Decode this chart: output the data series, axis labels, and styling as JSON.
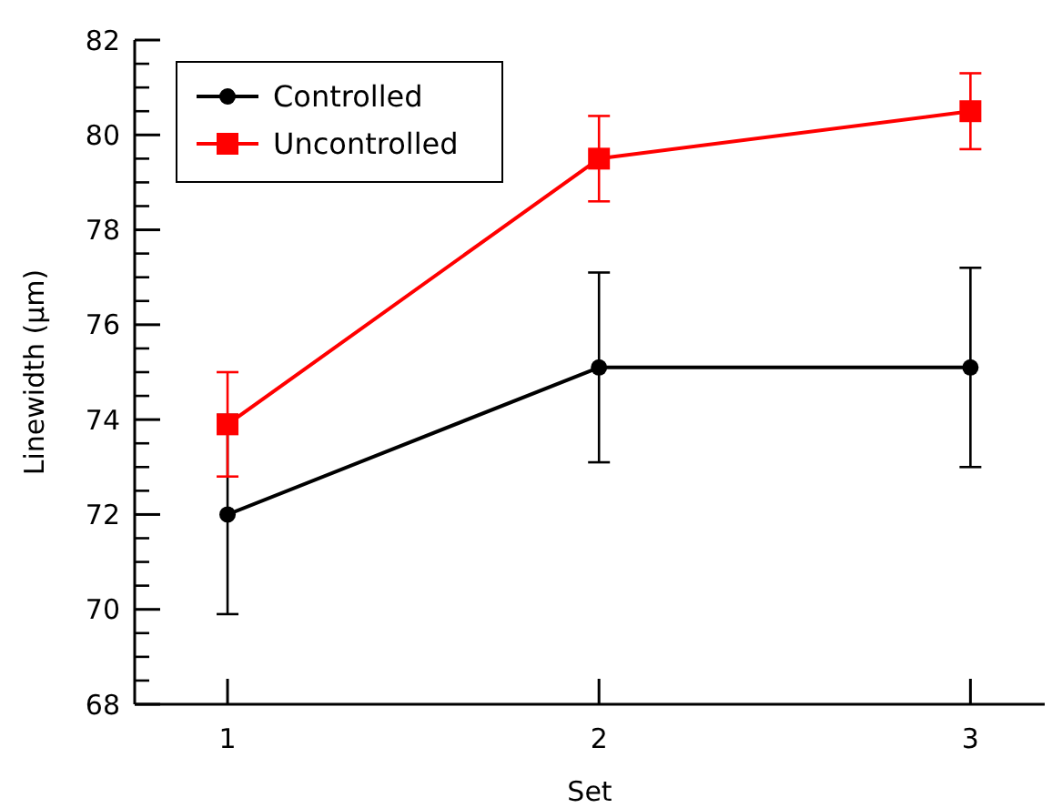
{
  "chart_data": {
    "type": "line",
    "xlabel": "Set",
    "ylabel": "Linewidth (µm)",
    "x": [
      1,
      2,
      3
    ],
    "xlim": [
      0.75,
      3.2
    ],
    "xticks": [
      1,
      2,
      3
    ],
    "ylim": [
      68,
      82
    ],
    "yticks": [
      68,
      70,
      72,
      74,
      76,
      78,
      80,
      82
    ],
    "grid": false,
    "legend": "top left",
    "series": [
      {
        "name": "Controlled",
        "color": "#000000",
        "marker": "circle",
        "values": [
          72.0,
          75.1,
          75.1
        ],
        "errors": [
          2.1,
          2.0,
          2.1
        ]
      },
      {
        "name": "Uncontrolled",
        "color": "#ff0000",
        "marker": "square",
        "values": [
          73.9,
          79.5,
          80.5
        ],
        "errors": [
          1.1,
          0.9,
          0.8
        ]
      }
    ]
  }
}
